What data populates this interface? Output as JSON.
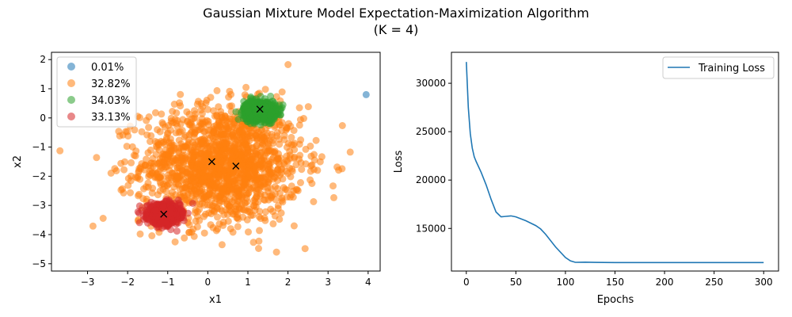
{
  "suptitle_line1": "Gaussian Mixture Model Expectation-Maximization Algorithm",
  "suptitle_line2": "(K = 4)",
  "chart_data": [
    {
      "type": "scatter",
      "title": "",
      "xlabel": "x1",
      "ylabel": "x2",
      "xlim": [
        -3.9,
        4.3
      ],
      "ylim": [
        -5.25,
        2.25
      ],
      "xticks": [
        -3,
        -2,
        -1,
        0,
        1,
        2,
        3,
        4
      ],
      "yticks": [
        -5,
        -4,
        -3,
        -2,
        -1,
        0,
        1,
        2
      ],
      "grid": false,
      "legend_position": "top-left",
      "point_alpha": 0.55,
      "series": [
        {
          "name": "0.01%",
          "color": "#1f77b4",
          "cluster": {
            "n": 1,
            "mean": [
              3.95,
              0.8
            ],
            "std": [
              0,
              0
            ]
          },
          "points": [
            [
              3.95,
              0.8
            ]
          ]
        },
        {
          "name": "32.82%",
          "color": "#ff7f0e",
          "cluster": {
            "n": 1600,
            "mean": [
              0.35,
              -1.6
            ],
            "std": [
              1.0,
              1.0
            ]
          },
          "points": []
        },
        {
          "name": "34.03%",
          "color": "#2ca02c",
          "cluster": {
            "n": 700,
            "mean": [
              1.3,
              0.25
            ],
            "std": [
              0.2,
              0.17
            ]
          },
          "points": []
        },
        {
          "name": "33.13%",
          "color": "#d62728",
          "cluster": {
            "n": 700,
            "mean": [
              -1.1,
              -3.3
            ],
            "std": [
              0.2,
              0.17
            ]
          },
          "points": []
        }
      ],
      "centroids": [
        [
          1.3,
          0.3
        ],
        [
          0.1,
          -1.5
        ],
        [
          0.7,
          -1.65
        ],
        [
          -1.1,
          -3.3
        ]
      ]
    },
    {
      "type": "line",
      "title": "",
      "xlabel": "Epochs",
      "ylabel": "Loss",
      "xlim": [
        -15,
        315
      ],
      "ylim": [
        10600,
        33200
      ],
      "xticks": [
        0,
        50,
        100,
        150,
        200,
        250,
        300
      ],
      "yticks": [
        15000,
        20000,
        25000,
        30000
      ],
      "grid": false,
      "legend_position": "top-right",
      "series": [
        {
          "name": "Training Loss",
          "color": "#1f77b4",
          "x": [
            0,
            2,
            4,
            6,
            8,
            10,
            15,
            20,
            25,
            30,
            35,
            40,
            45,
            50,
            60,
            70,
            75,
            80,
            90,
            100,
            105,
            110,
            120,
            130,
            150,
            200,
            250,
            300
          ],
          "y": [
            32200,
            27500,
            24800,
            23300,
            22400,
            21900,
            20800,
            19500,
            18000,
            16700,
            16200,
            16250,
            16300,
            16200,
            15800,
            15300,
            14950,
            14400,
            13100,
            12000,
            11650,
            11500,
            11520,
            11490,
            11480,
            11480,
            11480,
            11480
          ]
        }
      ]
    }
  ]
}
